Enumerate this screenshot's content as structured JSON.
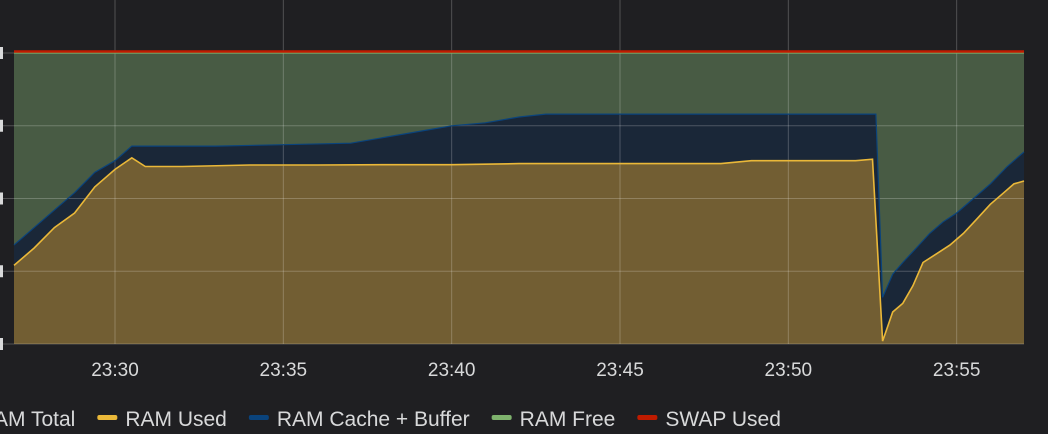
{
  "chart_data": {
    "type": "area",
    "stacked": true,
    "x_ticks": [
      "23:30",
      "23:35",
      "23:40",
      "23:45",
      "23:50",
      "23:55"
    ],
    "x_tick_minutes": [
      30,
      35,
      40,
      45,
      50,
      55
    ],
    "x_range_minutes": [
      27,
      57
    ],
    "y_range": [
      0,
      100
    ],
    "y_tick_values": [
      0,
      25,
      50,
      75,
      100
    ],
    "grid": true,
    "legend_position": "bottom",
    "legend": [
      {
        "label": "AM Total",
        "color": "#c4c4c4"
      },
      {
        "label": "RAM Used",
        "color": "#eab839"
      },
      {
        "label": "RAM Cache + Buffer",
        "color": "#0a437c"
      },
      {
        "label": "RAM Free",
        "color": "#7eb26d"
      },
      {
        "label": "SWAP Used",
        "color": "#bf1b00"
      }
    ],
    "series": [
      {
        "name": "RAM Used",
        "color": "#eab839",
        "fill": "#725e33",
        "points": [
          [
            27.0,
            27
          ],
          [
            27.6,
            33
          ],
          [
            28.2,
            40
          ],
          [
            28.8,
            45
          ],
          [
            29.4,
            54
          ],
          [
            30.0,
            60
          ],
          [
            30.5,
            64
          ],
          [
            30.9,
            61
          ],
          [
            31.2,
            61
          ],
          [
            32,
            61
          ],
          [
            34,
            61.5
          ],
          [
            36,
            61.5
          ],
          [
            38,
            61.6
          ],
          [
            40,
            61.6
          ],
          [
            42,
            62
          ],
          [
            44,
            62
          ],
          [
            46,
            62
          ],
          [
            48,
            62
          ],
          [
            48.9,
            63
          ],
          [
            50,
            63
          ],
          [
            52.0,
            63
          ],
          [
            52.5,
            63.5
          ],
          [
            52.8,
            1
          ],
          [
            53.1,
            11
          ],
          [
            53.4,
            14
          ],
          [
            53.7,
            20
          ],
          [
            54.0,
            28
          ],
          [
            54.4,
            31
          ],
          [
            54.8,
            34
          ],
          [
            55.2,
            38
          ],
          [
            55.6,
            43
          ],
          [
            56.0,
            48
          ],
          [
            56.4,
            52
          ],
          [
            56.7,
            55
          ],
          [
            57.0,
            56
          ]
        ]
      },
      {
        "name": "RAM Cache + Buffer",
        "color": "#0a437c",
        "fill": "#1a2738",
        "points": [
          [
            27.0,
            34
          ],
          [
            27.6,
            40
          ],
          [
            28.2,
            46
          ],
          [
            28.8,
            52
          ],
          [
            29.4,
            59
          ],
          [
            30.0,
            63
          ],
          [
            30.5,
            68
          ],
          [
            30.9,
            68
          ],
          [
            31.2,
            68
          ],
          [
            33,
            68
          ],
          [
            35,
            68.5
          ],
          [
            37,
            69
          ],
          [
            38,
            71
          ],
          [
            39,
            73
          ],
          [
            40,
            75
          ],
          [
            41,
            76
          ],
          [
            42,
            78
          ],
          [
            42.8,
            79
          ],
          [
            44,
            79
          ],
          [
            46,
            79
          ],
          [
            48,
            79
          ],
          [
            50,
            79
          ],
          [
            52.0,
            79
          ],
          [
            52.6,
            79
          ],
          [
            52.8,
            16
          ],
          [
            53.1,
            24
          ],
          [
            53.4,
            28
          ],
          [
            53.8,
            33
          ],
          [
            54.2,
            38
          ],
          [
            54.6,
            42
          ],
          [
            55.0,
            45
          ],
          [
            55.5,
            50
          ],
          [
            56.0,
            55
          ],
          [
            56.5,
            61
          ],
          [
            57.0,
            66
          ]
        ]
      },
      {
        "name": "RAM Free",
        "color": "#7eb26d",
        "fill": "#485b44",
        "points": [
          [
            27.0,
            100
          ],
          [
            57.0,
            100
          ]
        ]
      },
      {
        "name": "SWAP Used",
        "color": "#bf1b00",
        "points": [
          [
            27.0,
            100.5
          ],
          [
            57.0,
            100.5
          ]
        ]
      }
    ]
  }
}
